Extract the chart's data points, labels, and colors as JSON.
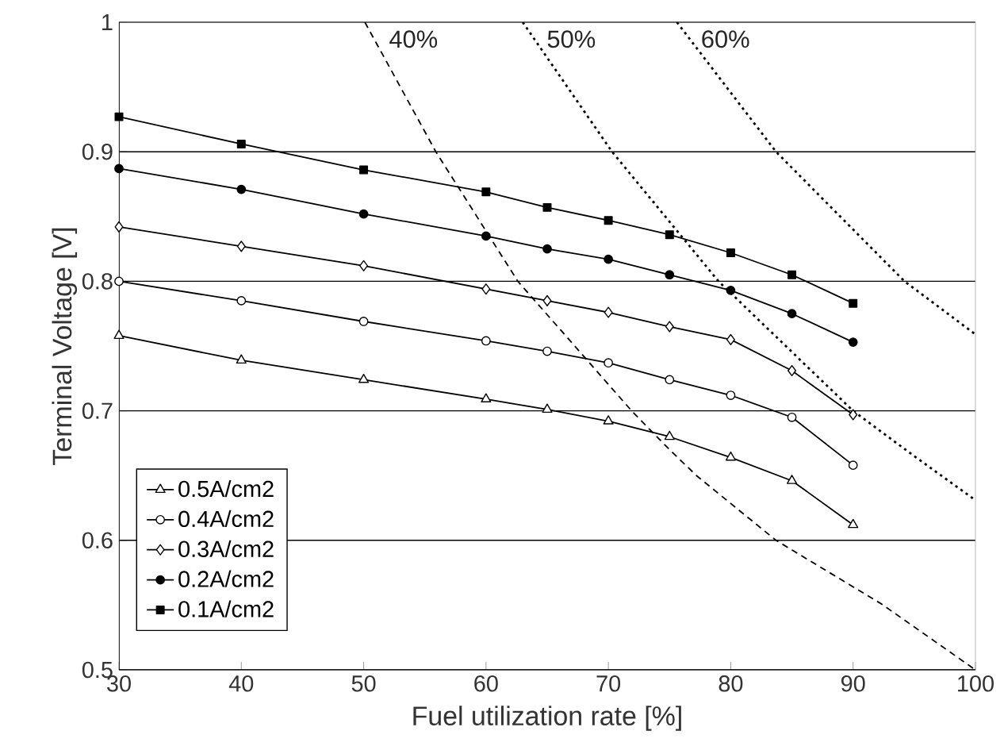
{
  "chart_data": {
    "type": "line",
    "xlabel": "Fuel utilization rate [%]",
    "ylabel": "Terminal Voltage  [V]",
    "xlim": [
      30,
      100
    ],
    "xticks": [
      30,
      40,
      50,
      60,
      70,
      80,
      90,
      100
    ],
    "ylim": [
      0.5,
      1
    ],
    "yticks": [
      0.5,
      0.6,
      0.7,
      0.8,
      0.9,
      1
    ],
    "grid": "y",
    "legend": "bottom left",
    "series": [
      {
        "name": "0.5A/cm2",
        "color": "#000000",
        "marker": "triangle",
        "line_style": "solid",
        "x": [
          30,
          40,
          50,
          60,
          65,
          70,
          75,
          80,
          85,
          90
        ],
        "values": [
          0.758,
          0.739,
          0.724,
          0.709,
          0.701,
          0.692,
          0.68,
          0.664,
          0.646,
          0.612
        ]
      },
      {
        "name": "0.4A/cm2",
        "color": "#000000",
        "marker": "open circle",
        "line_style": "solid",
        "x": [
          30,
          40,
          50,
          60,
          65,
          70,
          75,
          80,
          85,
          90
        ],
        "values": [
          0.8,
          0.785,
          0.769,
          0.754,
          0.746,
          0.737,
          0.724,
          0.712,
          0.695,
          0.658
        ]
      },
      {
        "name": "0.3A/cm2",
        "color": "#000000",
        "marker": "diamond",
        "line_style": "solid",
        "x": [
          30,
          40,
          50,
          60,
          65,
          70,
          75,
          80,
          85,
          90
        ],
        "values": [
          0.842,
          0.827,
          0.812,
          0.794,
          0.785,
          0.776,
          0.765,
          0.755,
          0.731,
          0.697
        ]
      },
      {
        "name": "0.2A/cm2",
        "color": "#000000",
        "marker": "circle",
        "line_style": "solid",
        "x": [
          30,
          40,
          50,
          60,
          65,
          70,
          75,
          80,
          85,
          90
        ],
        "values": [
          0.887,
          0.871,
          0.852,
          0.835,
          0.825,
          0.817,
          0.805,
          0.793,
          0.775,
          0.753
        ]
      },
      {
        "name": "0.1A/cm2",
        "color": "#000000",
        "marker": "square",
        "line_style": "solid",
        "x": [
          30,
          40,
          50,
          60,
          65,
          70,
          75,
          80,
          85,
          90
        ],
        "values": [
          0.927,
          0.906,
          0.886,
          0.869,
          0.857,
          0.847,
          0.836,
          0.822,
          0.805,
          0.783
        ]
      },
      {
        "color": "#000000",
        "marker": "none",
        "line_style": "dashed",
        "x": [
          50.1,
          55.9,
          62.6,
          71.9,
          75,
          77.2,
          83.7,
          92.3,
          100
        ],
        "values": [
          1,
          0.9,
          0.8,
          0.7,
          0.67,
          0.65,
          0.6,
          0.551,
          0.5
        ]
      },
      {
        "color": "#000000",
        "marker": "none",
        "line_style": "dotted",
        "x": [
          63.0,
          70.3,
          79.0,
          90,
          95,
          100
        ],
        "values": [
          1,
          0.9,
          0.8,
          0.7,
          0.665,
          0.631
        ]
      },
      {
        "color": "#000000",
        "marker": "none",
        "line_style": "dotted",
        "x": [
          75.6,
          83.7,
          94.2,
          100
        ],
        "values": [
          1,
          0.9,
          0.8,
          0.759
        ]
      }
    ],
    "annotations": [
      "40%",
      "50%",
      "60%"
    ]
  }
}
